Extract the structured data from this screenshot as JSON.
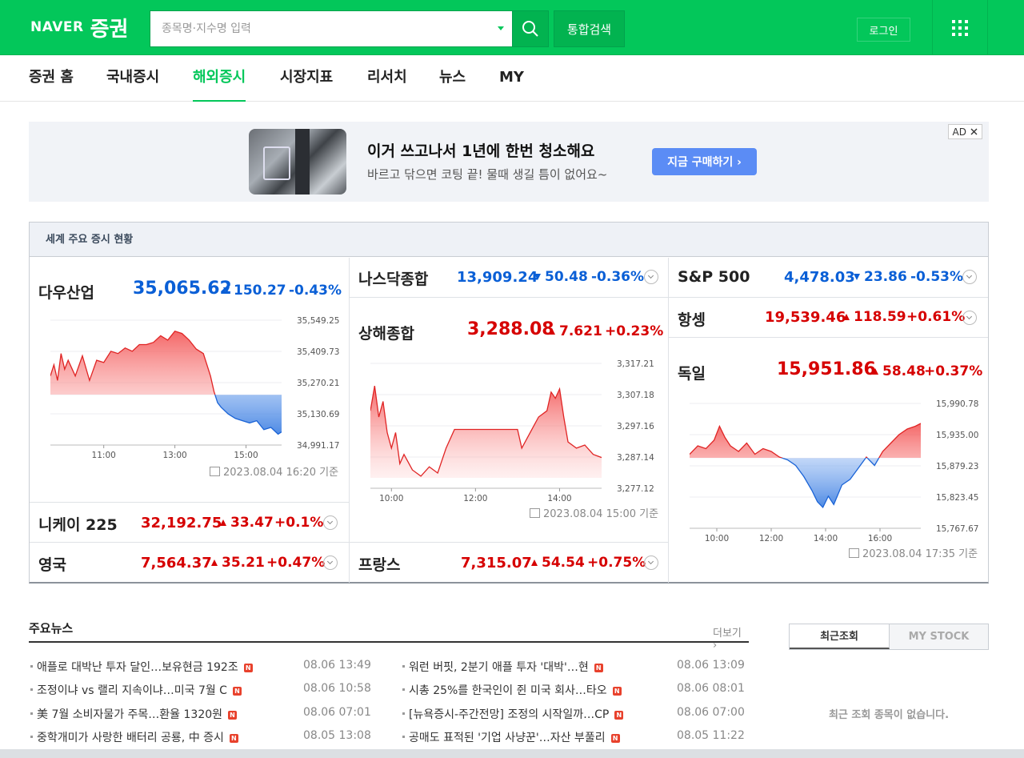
{
  "header": {
    "logo_naver": "NAVER",
    "logo_service": "증권",
    "search_placeholder": "종목명·지수명 입력",
    "integrated_search": "통합검색",
    "login": "로그인"
  },
  "nav": [
    "증권 홈",
    "국내증시",
    "해외증시",
    "시장지표",
    "리서치",
    "뉴스",
    "MY"
  ],
  "nav_active": "해외증시",
  "ad": {
    "title": "이거 쓰고나서 1년에 한번 청소해요",
    "subtitle": "바르고 닦으면 코팅 끝! 물때 생길 틈이 없어요~",
    "button": "지금 구매하기 ›",
    "tag": "AD"
  },
  "world": {
    "title": "세계 주요 증시 현황",
    "dow": {
      "name": "다우산업",
      "price": "35,065.62",
      "change": "150.27",
      "rate": "-0.43%",
      "dir": "down",
      "stamp": "2023.08.04 16:20 기준"
    },
    "nikkei": {
      "name": "니케이 225",
      "price": "32,192.75",
      "change": "33.47",
      "rate": "+0.1%",
      "dir": "up"
    },
    "uk": {
      "name": "영국",
      "price": "7,564.37",
      "change": "35.21",
      "rate": "+0.47%",
      "dir": "up"
    },
    "nasdaq": {
      "name": "나스닥종합",
      "price": "13,909.24",
      "change": "50.48",
      "rate": "-0.36%",
      "dir": "down"
    },
    "shanghai": {
      "name": "상해종합",
      "price": "3,288.08",
      "change": "7.621",
      "rate": "+0.23%",
      "dir": "up",
      "stamp": "2023.08.04 15:00 기준"
    },
    "france": {
      "name": "프랑스",
      "price": "7,315.07",
      "change": "54.54",
      "rate": "+0.75%",
      "dir": "up"
    },
    "sp500": {
      "name": "S&P 500",
      "price": "4,478.03",
      "change": "23.86",
      "rate": "-0.53%",
      "dir": "down"
    },
    "hangseng": {
      "name": "항셍",
      "price": "19,539.46",
      "change": "118.59",
      "rate": "+0.61%",
      "dir": "up"
    },
    "germany": {
      "name": "독일",
      "price": "15,951.86",
      "change": "58.48",
      "rate": "+0.37%",
      "dir": "up",
      "stamp": "2023.08.04 17:35 기준"
    }
  },
  "chart_data": [
    {
      "type": "area",
      "name": "다우산업",
      "ylim": [
        34991.17,
        35549.25
      ],
      "y_ticks": [
        "35,549.25",
        "35,409.73",
        "35,270.21",
        "35,130.69",
        "34,991.17"
      ],
      "x_ticks": [
        "11:00",
        "13:00",
        "15:00"
      ],
      "x_hours": [
        9.5,
        16
      ],
      "baseline": 35215.89,
      "x": [
        9.5,
        9.6,
        9.7,
        9.8,
        9.9,
        10.0,
        10.2,
        10.4,
        10.6,
        10.8,
        11.0,
        11.2,
        11.4,
        11.6,
        11.8,
        12.0,
        12.2,
        12.4,
        12.6,
        12.8,
        13.0,
        13.2,
        13.4,
        13.6,
        13.8,
        14.0,
        14.1,
        14.2,
        14.3,
        14.5,
        14.7,
        14.9,
        15.1,
        15.3,
        15.5,
        15.7,
        15.9,
        16.0
      ],
      "values": [
        35300,
        35350,
        35280,
        35400,
        35330,
        35370,
        35300,
        35390,
        35280,
        35370,
        35360,
        35410,
        35400,
        35425,
        35410,
        35440,
        35440,
        35450,
        35480,
        35460,
        35500,
        35490,
        35460,
        35420,
        35400,
        35300,
        35230,
        35180,
        35160,
        35130,
        35110,
        35100,
        35090,
        35100,
        35060,
        35070,
        35040,
        35050
      ]
    },
    {
      "type": "area",
      "name": "상해종합",
      "ylim": [
        3277.12,
        3317.21
      ],
      "y_ticks": [
        "3,317.21",
        "3,307.18",
        "3,297.16",
        "3,287.14",
        "3,277.12"
      ],
      "x_ticks": [
        "10:00",
        "12:00",
        "14:00"
      ],
      "x_hours": [
        9.5,
        15
      ],
      "baseline": 3280.46,
      "x": [
        9.5,
        9.6,
        9.7,
        9.8,
        9.9,
        10.0,
        10.1,
        10.2,
        10.3,
        10.5,
        10.7,
        10.9,
        11.1,
        11.3,
        11.5,
        13.0,
        13.1,
        13.3,
        13.5,
        13.7,
        13.8,
        13.9,
        14.0,
        14.1,
        14.2,
        14.4,
        14.6,
        14.8,
        15.0
      ],
      "values": [
        3302,
        3310,
        3300,
        3305,
        3295,
        3290,
        3295,
        3285,
        3288,
        3283,
        3281,
        3284,
        3282,
        3290,
        3296,
        3296,
        3290,
        3295,
        3300,
        3302,
        3308,
        3306,
        3309,
        3300,
        3292,
        3290,
        3291,
        3288,
        3287
      ]
    },
    {
      "type": "area",
      "name": "독일",
      "ylim": [
        15767.67,
        15990.78
      ],
      "y_ticks": [
        "15,990.78",
        "15,935.00",
        "15,879.23",
        "15,823.45",
        "15,767.67"
      ],
      "x_ticks": [
        "10:00",
        "12:00",
        "14:00",
        "16:00"
      ],
      "x_hours": [
        9,
        17.5
      ],
      "baseline": 15893.38,
      "x": [
        9.0,
        9.3,
        9.6,
        9.9,
        10.1,
        10.3,
        10.5,
        10.8,
        11.1,
        11.4,
        11.7,
        12.0,
        12.3,
        12.6,
        12.9,
        13.2,
        13.5,
        13.7,
        13.9,
        14.1,
        14.3,
        14.6,
        14.9,
        15.2,
        15.5,
        15.8,
        16.1,
        16.4,
        16.7,
        17.0,
        17.3,
        17.5
      ],
      "values": [
        15900,
        15915,
        15910,
        15925,
        15950,
        15930,
        15915,
        15905,
        15920,
        15900,
        15910,
        15905,
        15895,
        15890,
        15880,
        15860,
        15835,
        15815,
        15805,
        15825,
        15810,
        15845,
        15855,
        15875,
        15895,
        15880,
        15905,
        15920,
        15935,
        15945,
        15950,
        15955
      ]
    }
  ],
  "news": {
    "title": "주요뉴스",
    "more": "더보기",
    "badge": "N",
    "left": [
      {
        "title": "애플로 대박난 투자 달인…보유현금 192조",
        "date": "08.06 13:49"
      },
      {
        "title": "조정이냐 vs 랠리 지속이냐…미국 7월 C",
        "date": "08.06 10:58"
      },
      {
        "title": "美 7월 소비자물가 주목…환율 1320원",
        "date": "08.06 07:01"
      },
      {
        "title": "중학개미가 사랑한 배터리 공룡, 中 증시",
        "date": "08.05 13:08"
      }
    ],
    "right": [
      {
        "title": "워런 버핏, 2분기 애플 투자 '대박'…현",
        "date": "08.06 13:09"
      },
      {
        "title": "시총 25%를 한국인이 쥔 미국 회사…타오",
        "date": "08.06 08:01"
      },
      {
        "title": "[뉴욕증시-주간전망] 조정의 시작일까…CP",
        "date": "08.06 07:00"
      },
      {
        "title": "공매도 표적된 '기업 사냥꾼'…자산 부풀리",
        "date": "08.05 11:22"
      }
    ]
  },
  "recent": {
    "tab_recent": "최근조회",
    "tab_mystock": "MY STOCK",
    "empty": "최근 조회 종목이 없습니다."
  },
  "colors": {
    "brand": "#03c75a",
    "up": "#d60000",
    "down": "#0a5fd6"
  }
}
